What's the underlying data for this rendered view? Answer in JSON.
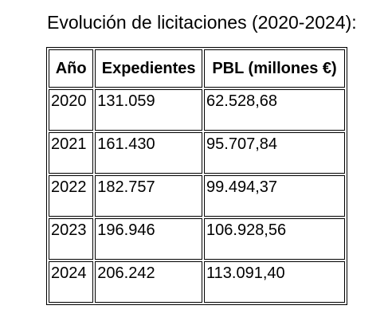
{
  "title": "Evolución de licitaciones (2020-2024):",
  "table": {
    "headers": [
      "Año",
      "Expedientes",
      "PBL (millones €)"
    ],
    "rows": [
      [
        "2020",
        "131.059",
        "62.528,68"
      ],
      [
        "2021",
        "161.430",
        "95.707,84"
      ],
      [
        "2022",
        "182.757",
        "99.494,37"
      ],
      [
        "2023",
        "196.946",
        "106.928,56"
      ],
      [
        "2024",
        "206.242",
        "113.091,40"
      ]
    ]
  }
}
